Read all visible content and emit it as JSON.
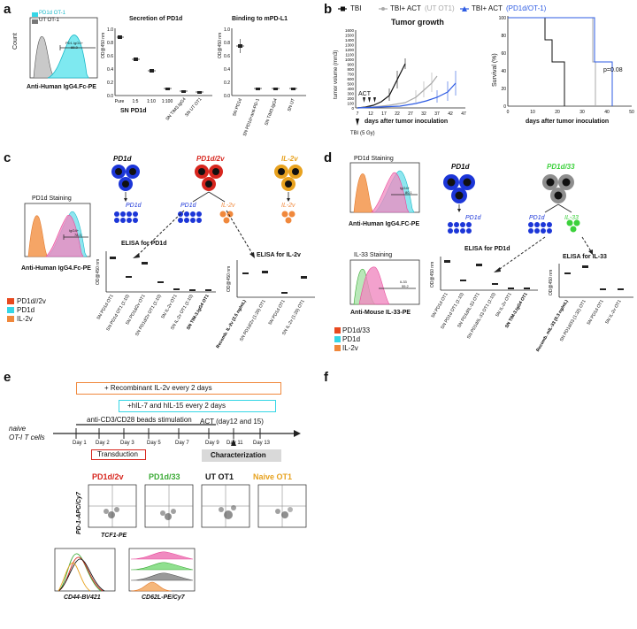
{
  "panels": {
    "a": {
      "label": "a",
      "flow": {
        "legend": [
          "PD1d OT-1",
          "UT OT-1"
        ],
        "xlabel": "Anti-Human IgG4.Fc-PE",
        "ylabel": "Count",
        "gate_label": "PD1.IgG4+",
        "gate_value": "88.3"
      },
      "secretion": {
        "title": "Secretion of PD1d",
        "ylabel": "OD@450 nm",
        "xlabel": "SN PD1d",
        "yticks": [
          "0.0",
          "0.2",
          "0.4",
          "0.6",
          "0.8",
          "1.0"
        ],
        "categories": [
          "Pure",
          "1:5",
          "1:10",
          "1:100",
          "SN TIM3.IgG4",
          "SN UT OT1"
        ]
      },
      "binding": {
        "title": "Binding to mPD-L1",
        "ylabel": "OD@450 nm",
        "yticks": [
          "0.0",
          "0.2",
          "0.4",
          "0.6",
          "0.8",
          "1.0"
        ],
        "categories": [
          "SN PD1d",
          "SN PD1d+anti-PD-1",
          "SN TIM3.IgG4",
          "SN UT"
        ]
      }
    },
    "b": {
      "label": "b",
      "legend": [
        "TBI",
        "TBI+ ACT",
        "(UT OT1)",
        "TBI+ ACT",
        "(PD1d/OT-1)"
      ],
      "growth": {
        "title": "Tumor growth",
        "ylabel": "tumor volume (mm3)",
        "xlabel": "days after tumor inoculation",
        "yticks": [
          "0",
          "100",
          "200",
          "300",
          "400",
          "500",
          "600",
          "700",
          "800",
          "900",
          "1000",
          "1100",
          "1200",
          "1300",
          "1400",
          "1500",
          "1600"
        ],
        "xticks": [
          "7",
          "12",
          "17",
          "22",
          "27",
          "32",
          "37",
          "42",
          "47"
        ],
        "act_label": "ACT",
        "tbi_label": "TBI (5 Gy)"
      },
      "survival": {
        "ylabel": "Survival (%)",
        "xlabel": "days after tumor inoculation",
        "yticks": [
          "0",
          "20",
          "40",
          "60",
          "80",
          "100"
        ],
        "xticks": [
          "0",
          "10",
          "20",
          "30",
          "40",
          "50"
        ],
        "pvalue": "p=0.08"
      }
    },
    "c": {
      "label": "c",
      "cells": [
        "PD1d",
        "PD1d/2v",
        "IL-2v"
      ],
      "secreted": [
        "PD1d",
        "PD1d",
        "IL-2v",
        "IL-2v"
      ],
      "flow_title": "PD1d  Staining",
      "flow_xlabel": "Anti-Human IgG4.Fc-PE",
      "flow_gate_label": "IgG4+",
      "flow_gate_value": "78.3",
      "legend": [
        "PD1d//2v",
        "PD1d",
        "IL-2v"
      ],
      "elisa1": {
        "title": "ELISA for PD1d",
        "ylabel": "OD@450 nm",
        "categories": [
          "SN PD1d OT1",
          "SN PD1d OT1 (1:10)",
          "SN PD1d/2v OT1",
          "SN PD1d/2v OT1 (1:10)",
          "SN IL-2v OT1",
          "SN IL-2v OT1 (1:10)",
          "SN TIM-3.IgG4 OT1"
        ]
      },
      "elisa2": {
        "title": "ELISA  for IL-2v",
        "ylabel": "OD@450 nm",
        "categories": [
          "Recomb. IL-2v (2.5 ng/mL)",
          "SN PD1d/2v (1:20) OT1",
          "SN PD1d OT1",
          "SN IL-2v (1:20) OT1"
        ]
      }
    },
    "d": {
      "label": "d",
      "cells": [
        "PD1d",
        "PD1d/33"
      ],
      "secreted": [
        "PD1d",
        "PD1d",
        "IL-33"
      ],
      "flow1_title": "PD1d Staining",
      "flow1_xlabel": "Anti-Human IgG4.FC-PE",
      "flow1_gate_label": "IgG4+",
      "flow1_gate_value": "80.1",
      "flow2_title": "IL-33 Staining",
      "flow2_xlabel": "Anti-Mouse IL-33-PE",
      "flow2_gate_label": "IL33",
      "flow2_gate_value": "55.2",
      "legend": [
        "PD1d/33",
        "PD1d",
        "IL-2v"
      ],
      "elisa1": {
        "title": "ELISA for PD1d",
        "ylabel": "OD@450 nm",
        "categories": [
          "SN PD1d OT1",
          "SN PD1d OT1 (1:10)",
          "SN PD1d/IL-33 OT1",
          "SN PD1d/IL-33 OT1 (1:10)",
          "SN IL-2v OT1",
          "SN TIM-3.IgG4 OT1"
        ]
      },
      "elisa2": {
        "title": "ELISA  for IL-33",
        "ylabel": "OD@450 nm",
        "categories": [
          "Recomb. mIL-33 (0.3 ng/mL)",
          "SN PD1d/33 (1:32) OT1",
          "SN PD1d OT1",
          "SN IL-2v OT1"
        ]
      }
    },
    "e": {
      "label": "e",
      "box1": "+ Recombinant IL-2v every 2 days",
      "box2": "+hIL-7 and hIL-15 every 2 days",
      "naive_line1": "naive",
      "naive_line2": "OT-I T cells",
      "beads": "anti-CD3/CD28 beads stimulation",
      "act": "ACT (day12 and 15)",
      "days": [
        "Day 1",
        "Day 2",
        "Day 3",
        "Day 5",
        "Day 7",
        "Day 9",
        "Day 11",
        "Day 13"
      ],
      "transduction": "Transduction",
      "characterization": "Characterization",
      "groups": [
        "PD1d/2v",
        "PD1d/33",
        "UT OT1",
        "Naive OT1"
      ],
      "group_colors": [
        "#d7261e",
        "#3aaa35",
        "#111111",
        "#e7a21f"
      ],
      "ylabel": "PD-1-APC/Cy7",
      "xlabel": "TCF1-PE",
      "hist1_xlabel": "CD44-BV421",
      "hist2_xlabel": "CD62L-PE/Cy7"
    },
    "f": {
      "label": "f"
    }
  },
  "colors": {
    "pd1d_cyan": "#35d6e6",
    "ut_gray": "#9e9e9e",
    "pink": "#e8489a",
    "orange": "#f0883c",
    "red": "#d7261e",
    "blue": "#1c36d8",
    "green": "#3cd13c",
    "gold": "#e8a21f",
    "tbi_black": "#111111",
    "ut_line": "#a9a9a9",
    "pd1d_line": "#2d5be3"
  }
}
